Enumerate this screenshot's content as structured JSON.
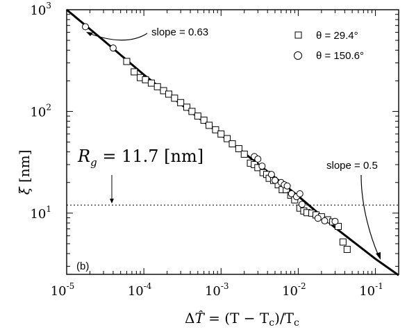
{
  "chart_data": {
    "type": "scatter",
    "xscale": "log",
    "yscale": "log",
    "xlim": [
      1e-05,
      0.2
    ],
    "ylim": [
      2.5,
      1000
    ],
    "x_ticks": [
      {
        "base": "10",
        "exp": "-5",
        "value": 1e-05
      },
      {
        "base": "10",
        "exp": "-4",
        "value": 0.0001
      },
      {
        "base": "10",
        "exp": "-3",
        "value": 0.001
      },
      {
        "base": "10",
        "exp": "-2",
        "value": 0.01
      },
      {
        "base": "10",
        "exp": "-1",
        "value": 0.1
      }
    ],
    "y_ticks": [
      {
        "base": "10",
        "exp": "1",
        "value": 10
      },
      {
        "base": "10",
        "exp": "2",
        "value": 100
      },
      {
        "base": "10",
        "exp": "3",
        "value": 1000
      }
    ],
    "xlabel": "ΔT̂ = (T − Tc)/Tc",
    "ylabel": "ξ [nm]",
    "panel_label": "(b)",
    "legend": {
      "position": "top-right",
      "entries": [
        {
          "marker": "square",
          "text": "θ = 29.4°"
        },
        {
          "marker": "circle",
          "text": "θ = 150.6°"
        }
      ]
    },
    "series": [
      {
        "name": "θ = 29.4°",
        "marker": "square",
        "points": [
          [
            6e-05,
            310
          ],
          [
            7.5e-05,
            245
          ],
          [
            9e-05,
            215
          ],
          [
            0.000105,
            205
          ],
          [
            0.000125,
            190
          ],
          [
            0.00015,
            175
          ],
          [
            0.00018,
            160
          ],
          [
            0.00021,
            148
          ],
          [
            0.00025,
            135
          ],
          [
            0.0003,
            122
          ],
          [
            0.00036,
            110
          ],
          [
            0.00042,
            100
          ],
          [
            0.0005,
            90
          ],
          [
            0.0006,
            82
          ],
          [
            0.0007,
            73
          ],
          [
            0.00085,
            66
          ],
          [
            0.001,
            60
          ],
          [
            0.0012,
            54
          ],
          [
            0.0014,
            48
          ],
          [
            0.0017,
            43
          ],
          [
            0.002,
            38
          ],
          [
            0.0024,
            31
          ],
          [
            0.0027,
            30
          ],
          [
            0.003,
            28
          ],
          [
            0.0035,
            25
          ],
          [
            0.0039,
            24
          ],
          [
            0.0042,
            22
          ],
          [
            0.0048,
            21
          ],
          [
            0.0055,
            19
          ],
          [
            0.0062,
            17
          ],
          [
            0.007,
            17
          ],
          [
            0.008,
            15
          ],
          [
            0.009,
            13.5
          ],
          [
            0.0105,
            11.2
          ],
          [
            0.0118,
            10.5
          ],
          [
            0.013,
            10.1
          ],
          [
            0.015,
            10
          ],
          [
            0.017,
            9.6
          ],
          [
            0.02,
            9.2
          ],
          [
            0.024,
            8.6
          ],
          [
            0.028,
            8.2
          ],
          [
            0.033,
            7.4
          ],
          [
            0.038,
            5.2
          ],
          [
            0.043,
            4.4
          ]
        ]
      },
      {
        "name": "θ = 150.6°",
        "marker": "circle",
        "points": [
          [
            1.75e-05,
            680
          ],
          [
            4e-05,
            420
          ],
          [
            0.0027,
            36
          ],
          [
            0.003,
            34
          ],
          [
            0.0034,
            29
          ],
          [
            0.0045,
            24
          ],
          [
            0.005,
            21
          ],
          [
            0.006,
            20
          ],
          [
            0.0066,
            19
          ],
          [
            0.0072,
            18.5
          ],
          [
            0.0082,
            15.5
          ],
          [
            0.0095,
            14.5
          ],
          [
            0.0105,
            15.5
          ],
          [
            0.0112,
            12.2
          ],
          [
            0.018,
            8.9
          ],
          [
            0.022,
            8.4
          ],
          [
            0.03,
            8.3
          ]
        ]
      }
    ],
    "fit_curve": {
      "label": "fit",
      "points": [
        [
          1e-05,
          1000
        ],
        [
          3e-05,
          500
        ],
        [
          0.0001,
          230
        ],
        [
          0.0003,
          118
        ],
        [
          0.001,
          59
        ],
        [
          0.003,
          30.5
        ],
        [
          0.01,
          14.7
        ],
        [
          0.03,
          7.2
        ],
        [
          0.1,
          3.55
        ],
        [
          0.2,
          2.45
        ]
      ]
    },
    "reference_line": {
      "y": 12,
      "style": "dotted"
    },
    "annotations": [
      {
        "text": "slope = 0.63",
        "points_to": [
          1.75e-05,
          680
        ]
      },
      {
        "text": "slope = 0.5",
        "points_to": [
          0.12,
          3.3
        ]
      },
      {
        "text": "Rg = 11.7 [nm]"
      }
    ]
  },
  "labels": {
    "slope_top": "slope = 0.63",
    "slope_bottom": "slope = 0.5",
    "rg_symbol": "R",
    "rg_sub": "g",
    "rg_value": " = 11.7 [nm]",
    "panel": "(b)",
    "legend_1": "θ = 29.4°",
    "legend_2": "θ = 150.6°",
    "xlabel_delta": "Δ",
    "xlabel_that": "T̂",
    "xlabel_mid": " = (T − T",
    "xlabel_c1": "c",
    "xlabel_close": ")/T",
    "xlabel_c2": "c",
    "ylabel_xi": "ξ",
    "ylabel_unit": " [nm]"
  }
}
